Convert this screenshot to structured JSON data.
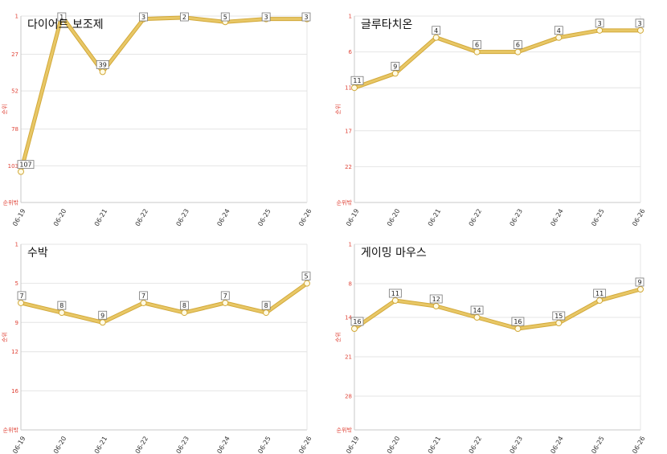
{
  "chart_data": [
    {
      "type": "line",
      "title": "다이어트 보조제",
      "ylabel": "순위",
      "categories": [
        "06-19",
        "06-20",
        "06-21",
        "06-22",
        "06-23",
        "06-24",
        "06-25",
        "06-26"
      ],
      "values": [
        107,
        1,
        39,
        3,
        2,
        5,
        3,
        3
      ],
      "yticks": [
        "1",
        "27",
        "52",
        "78",
        "103"
      ],
      "ytick_values": [
        1,
        27,
        52,
        78,
        103
      ],
      "ylim": [
        1,
        128
      ],
      "y_reversed": true,
      "bottom_label": "순위밖"
    },
    {
      "type": "line",
      "title": "글루타치온",
      "ylabel": "순위",
      "categories": [
        "06-19",
        "06-20",
        "06-21",
        "06-22",
        "06-23",
        "06-24",
        "06-25",
        "06-26"
      ],
      "values": [
        11,
        9,
        4,
        6,
        6,
        4,
        3,
        3
      ],
      "yticks": [
        "1",
        "6",
        "11",
        "17",
        "22"
      ],
      "ytick_values": [
        1,
        6,
        11,
        17,
        22
      ],
      "ylim": [
        1,
        27
      ],
      "y_reversed": true,
      "bottom_label": "순위밖"
    },
    {
      "type": "line",
      "title": "수박",
      "ylabel": "순위",
      "categories": [
        "06-19",
        "06-20",
        "06-21",
        "06-22",
        "06-23",
        "06-24",
        "06-25",
        "06-26"
      ],
      "values": [
        7,
        8,
        9,
        7,
        8,
        7,
        8,
        5
      ],
      "yticks": [
        "1",
        "5",
        "9",
        "12",
        "16"
      ],
      "ytick_values": [
        1,
        5,
        9,
        12,
        16
      ],
      "ylim": [
        1,
        20
      ],
      "y_reversed": true,
      "bottom_label": "순위밖"
    },
    {
      "type": "line",
      "title": "게이밍 마우스",
      "ylabel": "순위",
      "categories": [
        "06-19",
        "06-20",
        "06-21",
        "06-22",
        "06-23",
        "06-24",
        "06-25",
        "06-26"
      ],
      "values": [
        16,
        11,
        12,
        14,
        16,
        15,
        11,
        9
      ],
      "yticks": [
        "1",
        "8",
        "14",
        "21",
        "28"
      ],
      "ytick_values": [
        1,
        8,
        14,
        21,
        28
      ],
      "ylim": [
        1,
        34
      ],
      "y_reversed": true,
      "bottom_label": "순위밖"
    }
  ],
  "colors": {
    "line": "#e8c766",
    "line_edge": "#d2a93a",
    "marker_fill": "#fffbe6",
    "axis_text": "#e0463a"
  }
}
